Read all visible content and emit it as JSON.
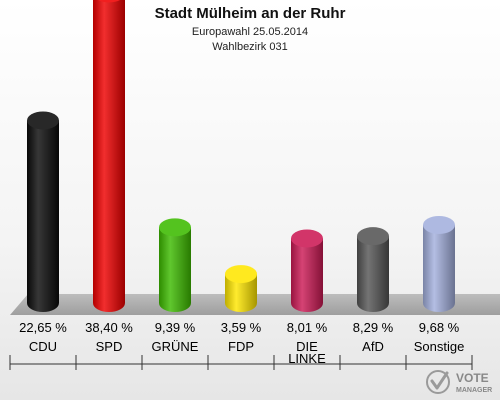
{
  "chart_data": {
    "type": "bar",
    "title": "Stadt Mülheim an der Ruhr",
    "subtitle_lines": [
      "Europawahl 25.05.2014",
      "Wahlbezirk 031"
    ],
    "categories": [
      [
        "CDU"
      ],
      [
        "SPD"
      ],
      [
        "GRÜNE"
      ],
      [
        "FDP"
      ],
      [
        "DIE",
        "LINKE"
      ],
      [
        "AfD"
      ],
      [
        "Sonstige"
      ]
    ],
    "values": [
      22.65,
      38.4,
      9.39,
      3.59,
      8.01,
      8.29,
      9.68
    ],
    "value_labels": [
      "22,65 %",
      "38,40 %",
      "9,39 %",
      "3,59 %",
      "8,01 %",
      "8,29 %",
      "9,68 %"
    ],
    "colors": [
      "#0b0b0b",
      "#ef0000",
      "#3dbb00",
      "#ffe600",
      "#cc1a55",
      "#555555",
      "#a3b0dd"
    ],
    "unit": "%",
    "bar_style": "3d-cylinder"
  },
  "logo": {
    "line1": "VOTE",
    "line2": "MANAGER"
  }
}
